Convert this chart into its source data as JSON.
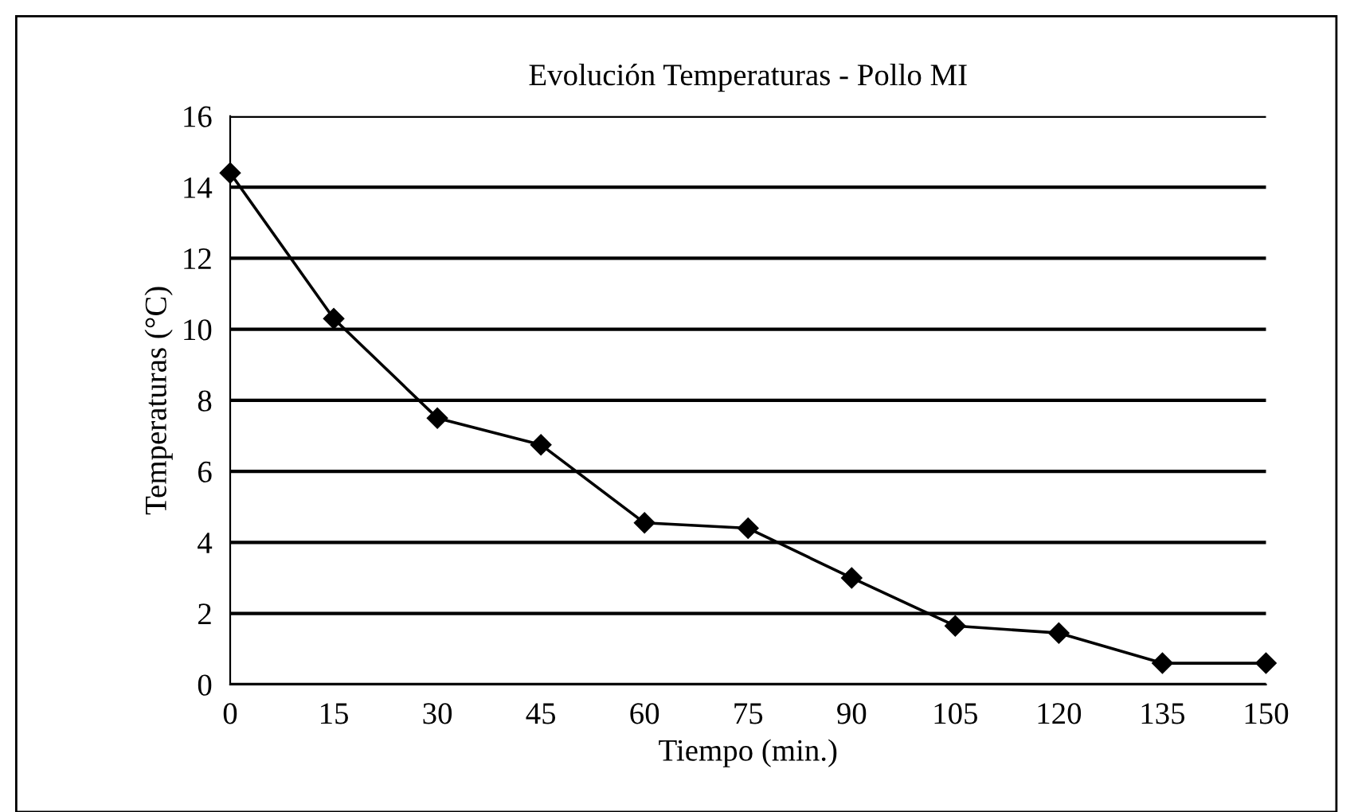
{
  "chart_data": {
    "type": "line",
    "title": "Evolución Temperaturas - Pollo MI",
    "xlabel": "Tiempo (min.)",
    "ylabel": "Temperaturas (°C)",
    "x": [
      0,
      15,
      30,
      45,
      60,
      75,
      90,
      105,
      120,
      135,
      150
    ],
    "series": [
      {
        "color": "#000000",
        "values": [
          14.4,
          10.3,
          7.5,
          6.75,
          4.55,
          4.4,
          3.0,
          1.65,
          1.45,
          0.6,
          0.6
        ]
      }
    ],
    "xlim": [
      0,
      150
    ],
    "xticks": [
      0,
      15,
      30,
      45,
      60,
      75,
      90,
      105,
      120,
      135,
      150
    ],
    "ylim": [
      0,
      16
    ],
    "yticks": [
      0,
      2,
      4,
      6,
      8,
      10,
      12,
      14,
      16
    ],
    "grid": "y",
    "marker": "diamond",
    "line_style": "solid",
    "legend": false
  }
}
